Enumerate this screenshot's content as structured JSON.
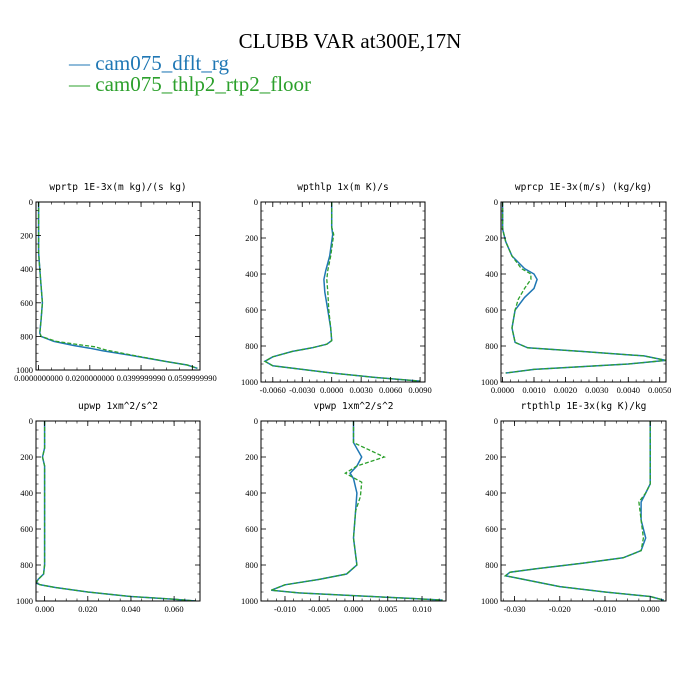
{
  "title": "CLUBB VAR at300E,17N",
  "legend": [
    {
      "label": "— cam075_dflt_rg",
      "color": "#1f77b4"
    },
    {
      "label": "— cam075_thlp2_rtp2_floor",
      "color": "#2ca02c"
    }
  ],
  "chart_data": [
    {
      "type": "line",
      "title": "wprtp  1E-3x(m kg)/(s kg)",
      "xlim": [
        -0.001,
        0.063
      ],
      "ylim": [
        1000,
        0
      ],
      "xticks": [
        0.0,
        0.02,
        0.04,
        0.06
      ],
      "xtick_labels": [
        "0.0000000000",
        "0.0200000000",
        "0.0399999990",
        "0.0599999990"
      ],
      "yticks": [
        0,
        200,
        400,
        600,
        800,
        1000
      ],
      "ytick_labels": [
        "0",
        "200",
        "400",
        "600",
        "800",
        "1000"
      ],
      "series": [
        {
          "name": "cam075_dflt_rg",
          "color": "#1f77b4",
          "dashed": false,
          "x": [
            0,
            0,
            0.0005,
            0.001,
            0.0015,
            0.001,
            0.0005,
            0.001,
            0.006,
            0.014,
            0.02,
            0.025,
            0.035,
            0.05,
            0.058,
            0.062
          ],
          "y": [
            0,
            300,
            400,
            500,
            600,
            700,
            780,
            800,
            830,
            855,
            870,
            885,
            910,
            950,
            970,
            990
          ]
        },
        {
          "name": "cam075_thlp2_rtp2_floor",
          "color": "#2ca02c",
          "dashed": true,
          "x": [
            0,
            0,
            0.0005,
            0.001,
            0.0015,
            0.001,
            0.0005,
            0.001,
            0.007,
            0.016,
            0.022,
            0.026,
            0.036,
            0.05,
            0.058,
            0.062
          ],
          "y": [
            0,
            300,
            400,
            500,
            600,
            700,
            780,
            800,
            830,
            850,
            862,
            880,
            910,
            950,
            970,
            990
          ]
        }
      ]
    },
    {
      "type": "line",
      "title": "wpthlp  1x(m K)/s",
      "xlim": [
        -0.0072,
        0.0095
      ],
      "ylim": [
        1000,
        0
      ],
      "xticks": [
        -0.006,
        -0.003,
        0.0,
        0.003,
        0.006,
        0.009
      ],
      "xtick_labels": [
        "-0.0060",
        "-0.0030",
        "0.0000",
        "0.0030",
        "0.0060",
        "0.0090"
      ],
      "yticks": [
        0,
        200,
        400,
        600,
        800,
        1000
      ],
      "ytick_labels": [
        "0",
        "200",
        "400",
        "600",
        "800",
        "1000"
      ],
      "series": [
        {
          "name": "cam075_dflt_rg",
          "color": "#1f77b4",
          "dashed": false,
          "x": [
            0,
            0,
            0.0001,
            -0.0002,
            -0.0006,
            -0.0008,
            -0.0007,
            -0.0004,
            -0.0001,
            0,
            -0.0005,
            -0.002,
            -0.004,
            -0.006,
            -0.0068,
            -0.006,
            0,
            0.0045,
            0.009
          ],
          "y": [
            0,
            140,
            180,
            300,
            380,
            430,
            500,
            600,
            700,
            770,
            790,
            810,
            830,
            860,
            885,
            910,
            950,
            975,
            995
          ]
        },
        {
          "name": "cam075_thlp2_rtp2_floor",
          "color": "#2ca02c",
          "dashed": true,
          "x": [
            0,
            0,
            0.0002,
            -0.0001,
            -0.0004,
            -0.0005,
            -0.0004,
            -0.0003,
            -0.0001,
            0,
            -0.0005,
            -0.002,
            -0.004,
            -0.006,
            -0.0068,
            -0.006,
            0,
            0.0045,
            0.009
          ],
          "y": [
            0,
            140,
            180,
            300,
            380,
            430,
            500,
            600,
            700,
            770,
            790,
            810,
            830,
            860,
            885,
            910,
            950,
            975,
            995
          ]
        }
      ]
    },
    {
      "type": "line",
      "title": "wprcp  1E-3x(m/s) (kg/kg)",
      "xlim": [
        -5e-05,
        0.0052
      ],
      "ylim": [
        1000,
        0
      ],
      "xticks": [
        0.0,
        0.001,
        0.002,
        0.003,
        0.004,
        0.005
      ],
      "xtick_labels": [
        "0.0000",
        "0.0010",
        "0.0020",
        "0.0030",
        "0.0040",
        "0.0050"
      ],
      "yticks": [
        0,
        200,
        400,
        600,
        800,
        1000
      ],
      "ytick_labels": [
        "0",
        "200",
        "400",
        "600",
        "800",
        "1000"
      ],
      "series": [
        {
          "name": "cam075_dflt_rg",
          "color": "#1f77b4",
          "dashed": false,
          "x": [
            0,
            0,
            0.0001,
            0.0003,
            0.0007,
            0.001,
            0.0011,
            0.001,
            0.0007,
            0.0004,
            0.0003,
            0.0004,
            0.0008,
            0.0025,
            0.0045,
            0.0052,
            0.004,
            0.001,
            0.0001
          ],
          "y": [
            0,
            150,
            220,
            300,
            370,
            400,
            430,
            480,
            530,
            600,
            700,
            780,
            810,
            830,
            855,
            880,
            900,
            930,
            950
          ]
        },
        {
          "name": "cam075_thlp2_rtp2_floor",
          "color": "#2ca02c",
          "dashed": true,
          "x": [
            0,
            0,
            0.0001,
            0.0003,
            0.0006,
            0.0009,
            0.0009,
            0.0007,
            0.0005,
            0.0004,
            0.0003,
            0.0004,
            0.0008,
            0.0025,
            0.0045,
            0.0052,
            0.004,
            0.001,
            0.0001
          ],
          "y": [
            0,
            150,
            220,
            300,
            370,
            400,
            430,
            480,
            540,
            600,
            700,
            780,
            810,
            830,
            855,
            880,
            900,
            930,
            950
          ]
        }
      ]
    },
    {
      "type": "line",
      "title": "upwp  1xm^2/s^2",
      "xlim": [
        -0.004,
        0.072
      ],
      "ylim": [
        1000,
        0
      ],
      "xticks": [
        0.0,
        0.02,
        0.04,
        0.06
      ],
      "xtick_labels": [
        "0.000",
        "0.020",
        "0.040",
        "0.060"
      ],
      "yticks": [
        0,
        200,
        400,
        600,
        800,
        1000
      ],
      "ytick_labels": [
        "0",
        "200",
        "400",
        "600",
        "800",
        "1000"
      ],
      "series": [
        {
          "name": "cam075_dflt_rg",
          "color": "#1f77b4",
          "dashed": false,
          "x": [
            0,
            0,
            -0.001,
            0,
            0,
            0,
            -0.0005,
            -0.003,
            -0.004,
            -0.002,
            0.005,
            0.02,
            0.04,
            0.06,
            0.07
          ],
          "y": [
            0,
            150,
            200,
            250,
            500,
            800,
            850,
            880,
            900,
            910,
            925,
            950,
            975,
            990,
            1000
          ]
        },
        {
          "name": "cam075_thlp2_rtp2_floor",
          "color": "#2ca02c",
          "dashed": true,
          "x": [
            0,
            0,
            -0.001,
            0,
            0,
            0,
            -0.0005,
            -0.003,
            -0.004,
            -0.002,
            0.005,
            0.02,
            0.04,
            0.06,
            0.07
          ],
          "y": [
            0,
            150,
            200,
            250,
            500,
            800,
            850,
            880,
            900,
            910,
            925,
            950,
            975,
            990,
            1000
          ]
        }
      ]
    },
    {
      "type": "line",
      "title": "vpwp  1xm^2/s^2",
      "xlim": [
        -0.0135,
        0.0135
      ],
      "ylim": [
        1000,
        0
      ],
      "xticks": [
        -0.01,
        -0.005,
        0.0,
        0.005,
        0.01
      ],
      "xtick_labels": [
        "-0.010",
        "-0.005",
        "0.000",
        "0.005",
        "0.010"
      ],
      "yticks": [
        0,
        200,
        400,
        600,
        800,
        1000
      ],
      "ytick_labels": [
        "0",
        "200",
        "400",
        "600",
        "800",
        "1000"
      ],
      "series": [
        {
          "name": "cam075_dflt_rg",
          "color": "#1f77b4",
          "dashed": false,
          "x": [
            0,
            0,
            0.0012,
            0.0005,
            -0.0005,
            0,
            0.0005,
            0.0003,
            0,
            0.0005,
            -0.001,
            -0.005,
            -0.01,
            -0.012,
            -0.008,
            0,
            0.008,
            0.013
          ],
          "y": [
            0,
            120,
            200,
            250,
            290,
            320,
            400,
            500,
            650,
            800,
            850,
            880,
            910,
            940,
            955,
            970,
            985,
            995
          ]
        },
        {
          "name": "cam075_thlp2_rtp2_floor",
          "color": "#2ca02c",
          "dashed": true,
          "x": [
            0,
            0,
            0.0045,
            0.0005,
            -0.0012,
            0.0012,
            0.001,
            0.0003,
            0,
            0.0005,
            -0.001,
            -0.005,
            -0.01,
            -0.012,
            -0.008,
            0,
            0.008,
            0.013
          ],
          "y": [
            0,
            120,
            200,
            250,
            290,
            340,
            420,
            500,
            650,
            800,
            850,
            880,
            910,
            940,
            955,
            970,
            985,
            995
          ]
        }
      ]
    },
    {
      "type": "line",
      "title": "rtpthlp  1E-3x(kg K)/kg",
      "xlim": [
        -0.033,
        0.0035
      ],
      "ylim": [
        1000,
        0
      ],
      "xticks": [
        -0.03,
        -0.02,
        -0.01,
        0.0
      ],
      "xtick_labels": [
        "-0.030",
        "-0.020",
        "-0.010",
        "0.000"
      ],
      "yticks": [
        0,
        200,
        400,
        600,
        800,
        1000
      ],
      "ytick_labels": [
        "0",
        "200",
        "400",
        "600",
        "800",
        "1000"
      ],
      "series": [
        {
          "name": "cam075_dflt_rg",
          "color": "#1f77b4",
          "dashed": false,
          "x": [
            0,
            0,
            -0.001,
            -0.002,
            -0.002,
            -0.001,
            -0.002,
            -0.006,
            -0.015,
            -0.025,
            -0.031,
            -0.032,
            -0.028,
            -0.02,
            -0.01,
            0,
            0.003
          ],
          "y": [
            0,
            350,
            400,
            450,
            550,
            650,
            720,
            760,
            790,
            820,
            840,
            860,
            880,
            920,
            950,
            975,
            995
          ]
        },
        {
          "name": "cam075_thlp2_rtp2_floor",
          "color": "#2ca02c",
          "dashed": true,
          "x": [
            0,
            0,
            -0.001,
            -0.0025,
            -0.002,
            -0.0015,
            -0.002,
            -0.006,
            -0.015,
            -0.025,
            -0.031,
            -0.032,
            -0.028,
            -0.02,
            -0.01,
            0,
            0.003
          ],
          "y": [
            0,
            350,
            400,
            450,
            550,
            650,
            720,
            760,
            790,
            820,
            840,
            860,
            880,
            920,
            950,
            975,
            995
          ]
        }
      ]
    }
  ]
}
